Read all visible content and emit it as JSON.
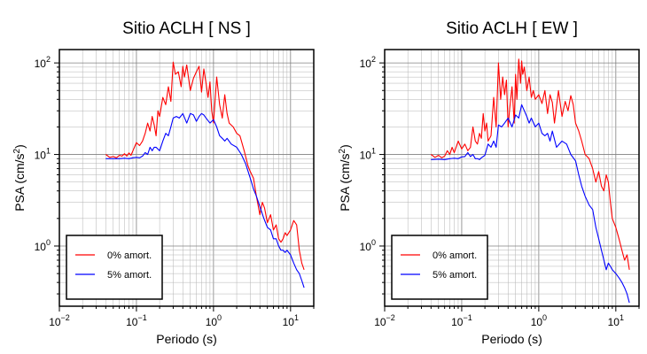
{
  "chart_data": [
    {
      "type": "line",
      "title": "Sitio ACLH [ NS ]",
      "xlabel": "Periodo (s)",
      "ylabel": "PSA (cm/s2)",
      "ylabel_base": "PSA (cm/s",
      "ylabel_sup": "2",
      "ylabel_tail": ")",
      "x_scale": "log",
      "y_scale": "log",
      "xlim": [
        0.01,
        20
      ],
      "ylim": [
        0.22,
        140
      ],
      "grid": true,
      "legend_position": "bottom-left",
      "x_ticks": [
        {
          "base": "10",
          "exp": "−2",
          "value": 0.01
        },
        {
          "base": "10",
          "exp": "−1",
          "value": 0.1
        },
        {
          "base": "10",
          "exp": "0",
          "value": 1
        },
        {
          "base": "10",
          "exp": "1",
          "value": 10
        }
      ],
      "y_ticks": [
        {
          "base": "10",
          "exp": "0",
          "value": 1
        },
        {
          "base": "10",
          "exp": "1",
          "value": 10
        },
        {
          "base": "10",
          "exp": "2",
          "value": 100
        }
      ],
      "series": [
        {
          "name": "0% amort.",
          "color": "#ff0000",
          "x": [
            0.04,
            0.045,
            0.05,
            0.055,
            0.06,
            0.065,
            0.07,
            0.075,
            0.08,
            0.085,
            0.09,
            0.1,
            0.11,
            0.12,
            0.13,
            0.14,
            0.15,
            0.16,
            0.17,
            0.18,
            0.19,
            0.2,
            0.22,
            0.24,
            0.26,
            0.28,
            0.3,
            0.32,
            0.35,
            0.38,
            0.4,
            0.42,
            0.45,
            0.5,
            0.55,
            0.6,
            0.65,
            0.7,
            0.75,
            0.8,
            0.85,
            0.9,
            0.95,
            1.0,
            1.1,
            1.2,
            1.3,
            1.4,
            1.5,
            1.6,
            1.8,
            2.0,
            2.2,
            2.5,
            2.8,
            3.0,
            3.3,
            3.6,
            4.0,
            4.3,
            4.6,
            5.0,
            5.5,
            6.0,
            6.5,
            7.0,
            7.5,
            8.0,
            8.5,
            9.0,
            10.0,
            11.0,
            12.0,
            13.0,
            14.0,
            15.0
          ],
          "y": [
            10,
            9.3,
            9.5,
            9.2,
            9.8,
            9.6,
            10.2,
            9.6,
            10.4,
            9.8,
            11,
            13.5,
            12.5,
            14,
            17,
            22,
            18,
            26,
            21,
            16,
            30,
            26,
            42,
            35,
            55,
            38,
            102,
            75,
            80,
            55,
            92,
            70,
            95,
            50,
            68,
            80,
            92,
            48,
            86,
            60,
            42,
            62,
            30,
            22,
            70,
            35,
            25,
            45,
            28,
            22,
            20,
            17,
            16,
            11,
            7.5,
            6.5,
            5.5,
            3.5,
            2.2,
            3.0,
            2.6,
            1.8,
            2.2,
            1.5,
            1.7,
            1.2,
            1.1,
            1.2,
            1.4,
            1.3,
            1.5,
            1.9,
            1.7,
            0.9,
            0.65,
            0.55
          ]
        },
        {
          "name": "5% amort.",
          "color": "#0000ff",
          "x": [
            0.04,
            0.05,
            0.06,
            0.07,
            0.08,
            0.09,
            0.1,
            0.11,
            0.12,
            0.13,
            0.14,
            0.15,
            0.16,
            0.17,
            0.18,
            0.2,
            0.22,
            0.24,
            0.26,
            0.28,
            0.3,
            0.33,
            0.36,
            0.4,
            0.45,
            0.5,
            0.55,
            0.6,
            0.65,
            0.7,
            0.75,
            0.8,
            0.9,
            1.0,
            1.1,
            1.2,
            1.3,
            1.4,
            1.5,
            1.7,
            2.0,
            2.3,
            2.6,
            3.0,
            3.3,
            3.6,
            4.0,
            4.5,
            5.0,
            5.5,
            6.0,
            6.5,
            7.0,
            7.5,
            8.0,
            8.5,
            9.0,
            10.0,
            11.0,
            12.0,
            13.0,
            14.0,
            15.0
          ],
          "y": [
            9,
            9,
            9,
            9.1,
            9,
            9.2,
            9.3,
            9.2,
            9.6,
            10.5,
            10,
            12,
            11,
            12,
            12,
            11,
            14,
            17,
            16,
            20,
            25,
            26,
            25,
            28,
            22,
            28,
            27,
            23,
            26,
            28,
            27,
            25,
            22,
            24,
            20,
            16,
            15,
            14,
            15,
            13,
            12,
            10,
            8,
            5.5,
            4.2,
            3.5,
            2.7,
            2.0,
            1.6,
            1.5,
            1.2,
            1.2,
            1.0,
            0.9,
            0.9,
            0.85,
            0.9,
            0.8,
            0.65,
            0.55,
            0.5,
            0.42,
            0.35
          ]
        }
      ]
    },
    {
      "type": "line",
      "title": "Sitio ACLH [ EW ]",
      "xlabel": "Periodo (s)",
      "ylabel": "PSA (cm/s2)",
      "ylabel_base": "PSA (cm/s",
      "ylabel_sup": "2",
      "ylabel_tail": ")",
      "x_scale": "log",
      "y_scale": "log",
      "xlim": [
        0.01,
        20
      ],
      "ylim": [
        0.22,
        140
      ],
      "grid": true,
      "legend_position": "bottom-left",
      "x_ticks": [
        {
          "base": "10",
          "exp": "−2",
          "value": 0.01
        },
        {
          "base": "10",
          "exp": "−1",
          "value": 0.1
        },
        {
          "base": "10",
          "exp": "0",
          "value": 1
        },
        {
          "base": "10",
          "exp": "1",
          "value": 10
        }
      ],
      "y_ticks": [
        {
          "base": "10",
          "exp": "0",
          "value": 1
        },
        {
          "base": "10",
          "exp": "1",
          "value": 10
        },
        {
          "base": "10",
          "exp": "2",
          "value": 100
        }
      ],
      "series": [
        {
          "name": "0% amort.",
          "color": "#ff0000",
          "x": [
            0.04,
            0.045,
            0.05,
            0.055,
            0.06,
            0.065,
            0.07,
            0.075,
            0.08,
            0.09,
            0.1,
            0.11,
            0.12,
            0.13,
            0.14,
            0.15,
            0.16,
            0.17,
            0.18,
            0.19,
            0.2,
            0.21,
            0.22,
            0.24,
            0.26,
            0.28,
            0.3,
            0.32,
            0.34,
            0.36,
            0.38,
            0.4,
            0.42,
            0.45,
            0.48,
            0.5,
            0.52,
            0.55,
            0.58,
            0.6,
            0.62,
            0.65,
            0.7,
            0.75,
            0.8,
            0.85,
            0.9,
            1.0,
            1.1,
            1.2,
            1.3,
            1.4,
            1.5,
            1.6,
            1.8,
            2.0,
            2.2,
            2.4,
            2.6,
            2.8,
            3.0,
            3.3,
            3.6,
            4.0,
            4.5,
            5.0,
            5.5,
            6.0,
            6.5,
            7.0,
            7.5,
            8.0,
            8.5,
            9.0,
            10.0,
            11.0,
            12.0,
            13.0,
            14.0,
            15.0
          ],
          "y": [
            10,
            9.3,
            9.8,
            9.2,
            9.6,
            11,
            10,
            12,
            10.5,
            14,
            11.5,
            13,
            11,
            12,
            20,
            14,
            13,
            17,
            15,
            28,
            18,
            22,
            14,
            16,
            42,
            20,
            100,
            40,
            70,
            45,
            65,
            20,
            32,
            55,
            22,
            75,
            40,
            110,
            60,
            105,
            75,
            90,
            50,
            70,
            42,
            50,
            40,
            45,
            36,
            50,
            28,
            45,
            37,
            22,
            50,
            26,
            38,
            30,
            44,
            35,
            22,
            18,
            14,
            10,
            9,
            7,
            5,
            6.5,
            4.5,
            4,
            6,
            5,
            3,
            2,
            1.6,
            1.2,
            0.9,
            0.7,
            0.8,
            0.55
          ]
        },
        {
          "name": "5% amort.",
          "color": "#0000ff",
          "x": [
            0.04,
            0.05,
            0.06,
            0.07,
            0.08,
            0.09,
            0.1,
            0.11,
            0.12,
            0.13,
            0.14,
            0.15,
            0.16,
            0.17,
            0.18,
            0.2,
            0.22,
            0.24,
            0.26,
            0.28,
            0.3,
            0.33,
            0.36,
            0.4,
            0.45,
            0.5,
            0.55,
            0.6,
            0.65,
            0.7,
            0.75,
            0.8,
            0.9,
            1.0,
            1.1,
            1.2,
            1.3,
            1.4,
            1.5,
            1.7,
            2.0,
            2.3,
            2.6,
            3.0,
            3.3,
            3.6,
            4.0,
            4.5,
            5.0,
            5.5,
            6.0,
            6.5,
            7.0,
            7.5,
            8.0,
            8.5,
            9.0,
            10.0,
            11.0,
            12.0,
            13.0,
            14.0,
            15.0
          ],
          "y": [
            8.8,
            8.9,
            8.8,
            9.0,
            9.1,
            9.0,
            9.4,
            9.5,
            10.5,
            9.5,
            10,
            9.0,
            9.0,
            8.8,
            9.2,
            9.8,
            13,
            12,
            14,
            12,
            21,
            20,
            22,
            25,
            20,
            27,
            25,
            35,
            30,
            26,
            22,
            25,
            20,
            22,
            17,
            16,
            17,
            14,
            18,
            12,
            14,
            13,
            10,
            8.5,
            6,
            4.5,
            3.5,
            2.8,
            2.5,
            1.6,
            1.2,
            0.9,
            0.7,
            0.55,
            0.65,
            0.6,
            0.55,
            0.5,
            0.45,
            0.4,
            0.35,
            0.3,
            0.24
          ]
        }
      ]
    }
  ]
}
